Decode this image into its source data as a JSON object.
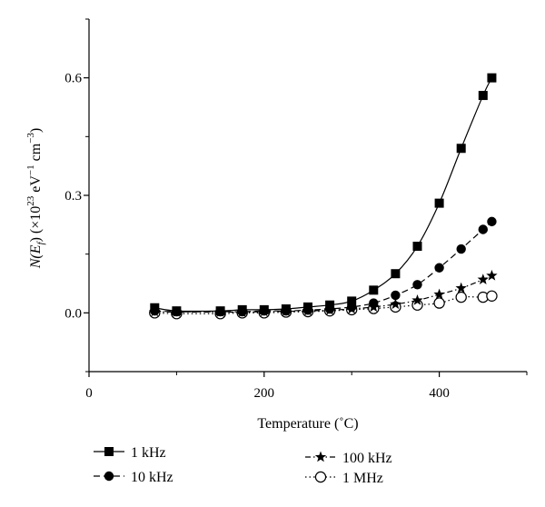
{
  "chart_data": {
    "type": "line",
    "xlabel": "Temperature (˚C)",
    "ylabel": "N(E_f) (×10^23 eV^-1 cm^-3)",
    "ylabel_parts": {
      "prefix": "N(E",
      "sub": "f",
      "mid1": ") (×10",
      "sup1": "23",
      "mid2": " eV",
      "sup2": "−1",
      "mid3": " cm",
      "sup3": "−3",
      "suffix": ")"
    },
    "xlim": [
      0,
      500
    ],
    "ylim": [
      -0.15,
      0.75
    ],
    "xticks": [
      0,
      200,
      400
    ],
    "xtick_labels": [
      "0",
      "200",
      "400"
    ],
    "yticks": [
      0.0,
      0.3,
      0.6
    ],
    "ytick_labels": [
      "0.0",
      "0.3",
      "0.6"
    ],
    "grid": false,
    "legend_position": "bottom",
    "series": [
      {
        "name": "1 kHz",
        "marker": "filled-square",
        "line": "solid",
        "x": [
          75,
          100,
          150,
          175,
          200,
          225,
          250,
          275,
          300,
          325,
          350,
          375,
          400,
          425,
          450,
          460
        ],
        "y": [
          0.013,
          0.005,
          0.005,
          0.008,
          0.008,
          0.01,
          0.015,
          0.02,
          0.03,
          0.058,
          0.1,
          0.17,
          0.28,
          0.42,
          0.555,
          0.6
        ]
      },
      {
        "name": "10 kHz",
        "marker": "filled-circle",
        "line": "dashed",
        "x": [
          75,
          100,
          150,
          175,
          200,
          225,
          250,
          275,
          300,
          325,
          350,
          375,
          400,
          425,
          450,
          460
        ],
        "y": [
          0.005,
          0.003,
          0.003,
          0.003,
          0.005,
          0.005,
          0.007,
          0.01,
          0.015,
          0.025,
          0.045,
          0.072,
          0.115,
          0.163,
          0.213,
          0.233
        ]
      },
      {
        "name": "100 kHz",
        "marker": "filled-star",
        "line": "dash-dot",
        "x": [
          75,
          100,
          150,
          175,
          200,
          225,
          250,
          275,
          300,
          325,
          350,
          375,
          400,
          425,
          450,
          460
        ],
        "y": [
          0.003,
          0.002,
          0.002,
          0.002,
          0.003,
          0.004,
          0.005,
          0.007,
          0.01,
          0.015,
          0.022,
          0.032,
          0.047,
          0.063,
          0.085,
          0.095
        ]
      },
      {
        "name": "1 MHz",
        "marker": "open-circle",
        "line": "dotted",
        "x": [
          75,
          100,
          150,
          175,
          200,
          225,
          250,
          275,
          300,
          325,
          350,
          375,
          400,
          425,
          450,
          460
        ],
        "y": [
          0.0,
          -0.002,
          -0.002,
          0.0,
          0.0,
          0.002,
          0.003,
          0.005,
          0.008,
          0.011,
          0.015,
          0.02,
          0.025,
          0.04,
          0.04,
          0.043
        ]
      }
    ]
  },
  "colors": {
    "foreground": "#000000",
    "background": "#ffffff"
  }
}
